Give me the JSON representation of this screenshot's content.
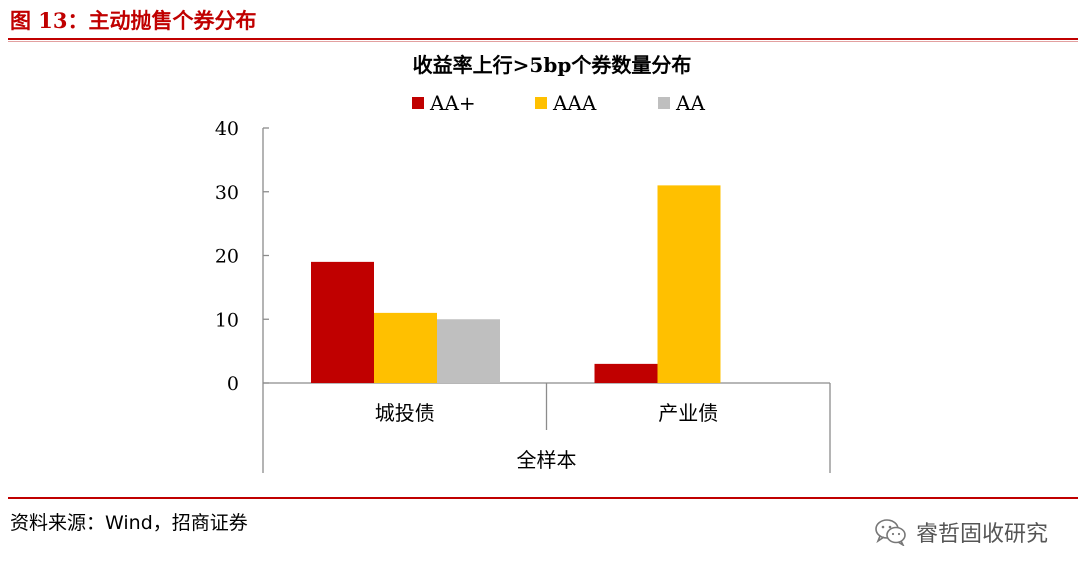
{
  "header": {
    "figure_title": "图 13：主动抛售个券分布"
  },
  "footer": {
    "source": "资料来源：Wind，招商证券",
    "watermark": "睿哲固收研究",
    "watermark_icon": "wechat-icon"
  },
  "colors": {
    "accent": "#c00000",
    "AA+": "#c00000",
    "AAA": "#ffc000",
    "AA": "#bfbfbf"
  },
  "chart_data": {
    "type": "bar",
    "title": "收益率上行>5bp个券数量分布",
    "categories": [
      "城投债",
      "产业债"
    ],
    "group_label": "全样本",
    "series": [
      {
        "name": "AA+",
        "values": [
          19,
          3
        ]
      },
      {
        "name": "AAA",
        "values": [
          11,
          31
        ]
      },
      {
        "name": "AA",
        "values": [
          10,
          0
        ]
      }
    ],
    "ylim": [
      0,
      40
    ],
    "yticks": [
      0,
      10,
      20,
      30,
      40
    ],
    "legend": "top",
    "grid": false,
    "xlabel": "",
    "ylabel": ""
  }
}
